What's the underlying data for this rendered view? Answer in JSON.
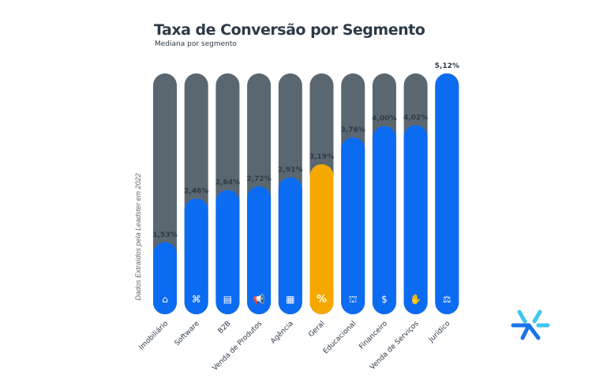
{
  "chart_data": {
    "type": "bar",
    "title": "Taxa de Conversão por Segmento",
    "subtitle": "Mediana por segmento",
    "ylabel": "Dados Extraídos pela Leadster em 2022",
    "xlabel": "",
    "ylim": [
      0,
      5.12
    ],
    "grid": false,
    "categories": [
      "Imobiliário",
      "Software",
      "B2B",
      "Venda de Produtos",
      "Agência",
      "Geral",
      "Educacional",
      "Financeiro",
      "Venda de Serviços",
      "Jurídico"
    ],
    "values": [
      1.53,
      2.46,
      2.64,
      2.72,
      2.91,
      3.19,
      3.76,
      4.0,
      4.02,
      5.12
    ],
    "data_labels": [
      "1,53%",
      "2,46%",
      "2,64%",
      "2,72%",
      "2,91%",
      "3,19%",
      "3,76%",
      "4,00%",
      "4,02%",
      "5,12%"
    ],
    "icons": [
      "house-icon",
      "command-icon",
      "id-card-icon",
      "megaphone-icon",
      "storefront-icon",
      "percent-icon",
      "bank-icon",
      "dollar-coin-icon",
      "hand-sparkle-icon",
      "scales-icon"
    ],
    "highlight": "Geral",
    "colors": {
      "track": "#5b6770",
      "fill": "#0b6cf2",
      "highlight": "#f5a800",
      "text": "#2e3a48"
    }
  },
  "logo": {
    "name": "Leadster"
  }
}
